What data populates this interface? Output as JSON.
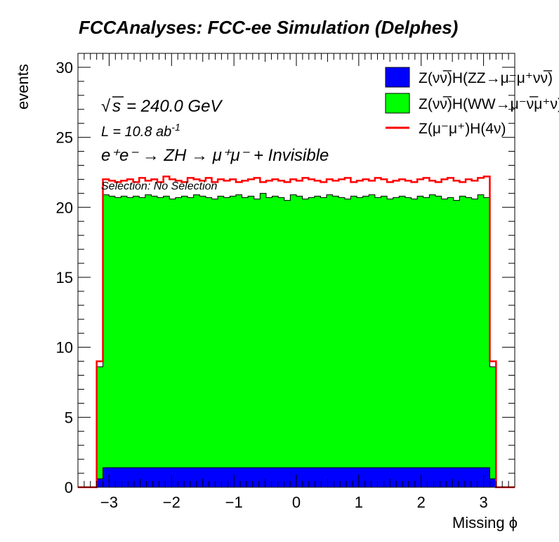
{
  "chart_data": {
    "type": "histogram",
    "title": "FCCAnalyses: FCC-ee Simulation (Delphes)",
    "xlabel": "Missing ϕ",
    "ylabel": "events",
    "xlim": [
      -3.5,
      3.5
    ],
    "ylim": [
      0,
      31
    ],
    "x_ticks": [
      -3,
      -2,
      -1,
      0,
      1,
      2,
      3
    ],
    "x_tick_labels": [
      "−3",
      "−2",
      "−1",
      "0",
      "1",
      "2",
      "3"
    ],
    "y_ticks": [
      0,
      5,
      10,
      15,
      20,
      25,
      30
    ],
    "y_tick_labels": [
      "0",
      "5",
      "10",
      "15",
      "20",
      "25",
      "30"
    ],
    "bin_edges": [
      -3.2,
      3.2
    ],
    "n_bins": 64,
    "edge_bins": {
      "low_x": [
        -3.2,
        -3.1
      ],
      "high_x": [
        3.1,
        3.2
      ]
    },
    "stack_totals": {
      "zz": {
        "bulk": 1.4,
        "edge": 0.6
      },
      "ww_total": {
        "bulk": [
          20.9,
          20.8,
          20.7,
          20.8,
          20.7,
          20.8,
          20.7,
          20.9,
          20.8,
          20.7,
          20.8,
          20.6,
          20.7,
          20.8,
          20.7,
          20.9,
          20.8,
          20.7,
          20.6,
          20.8,
          20.7,
          20.8,
          20.9,
          20.7,
          20.8,
          20.6,
          21.0,
          20.7,
          20.8,
          20.7,
          20.5,
          20.9,
          20.8,
          20.6,
          20.7,
          20.8,
          20.7,
          20.9,
          20.8,
          20.7,
          20.6,
          20.8,
          20.7,
          20.8,
          20.9,
          20.7,
          20.8,
          20.6,
          20.7,
          20.8,
          20.7,
          20.6,
          20.8,
          20.7,
          20.9,
          20.8,
          20.6,
          20.7,
          20.5,
          20.8,
          20.7,
          20.6,
          20.9,
          20.7
        ],
        "edge": 8.6
      },
      "signal": {
        "bulk": [
          22.0,
          21.9,
          21.8,
          21.9,
          22.0,
          21.8,
          22.1,
          21.9,
          22.0,
          21.8,
          22.2,
          22.0,
          21.9,
          21.8,
          22.1,
          22.0,
          21.9,
          22.1,
          21.8,
          22.0,
          21.9,
          22.0,
          21.8,
          21.9,
          22.0,
          22.1,
          21.8,
          21.9,
          22.0,
          21.9,
          21.8,
          22.0,
          21.9,
          22.1,
          22.0,
          21.9,
          21.8,
          22.0,
          21.9,
          22.0,
          22.1,
          21.8,
          21.9,
          22.0,
          21.9,
          22.1,
          22.0,
          21.8,
          21.9,
          22.0,
          21.9,
          21.8,
          22.0,
          22.1,
          21.9,
          21.8,
          22.0,
          22.1,
          21.9,
          21.8,
          22.0,
          21.9,
          22.1,
          22.2
        ],
        "edge": 9.0
      }
    },
    "series": [
      {
        "name": "Z(νν̅)H(ZZ→μ⁻μ⁺νν̅)",
        "color": "#0000ff",
        "style": "filled-stack"
      },
      {
        "name": "Z(νν̅)H(WW→μ⁻ν̅μ⁺ν)",
        "color": "#00ff00",
        "style": "filled-stack"
      },
      {
        "name": "Z(μ⁻μ⁺)H(4ν)",
        "color": "#ff0000",
        "style": "line"
      }
    ],
    "legend_placement": "top-right",
    "annotations": {
      "sqrt_s": "= 240.0 GeV",
      "lumi": "L = 10.8 ab",
      "lumi_exp": "-1",
      "process": "e⁺e⁻ → ZH → μ⁺μ⁻ + Invisible",
      "selection": "Selection: No Selection"
    }
  }
}
